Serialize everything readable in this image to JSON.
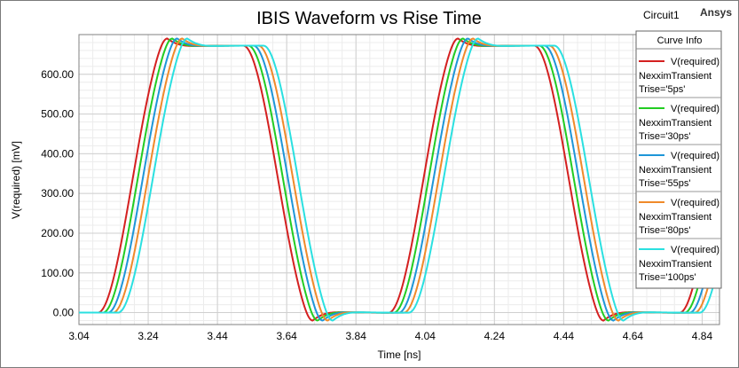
{
  "chart_data": {
    "type": "line",
    "title": "IBIS Waveform vs Rise Time",
    "circuit_label": "Circuit1",
    "brand": "Ansys",
    "xlabel": "Time [ns]",
    "ylabel": "V(required) [mV]",
    "xlim": [
      3.04,
      4.89
    ],
    "ylim": [
      -30,
      700
    ],
    "x_ticks": [
      "3.04",
      "3.24",
      "3.44",
      "3.64",
      "3.84",
      "4.04",
      "4.24",
      "4.44",
      "4.64",
      "4.84"
    ],
    "y_ticks": [
      "0.00",
      "100.00",
      "200.00",
      "300.00",
      "400.00",
      "500.00",
      "600.00"
    ],
    "grid": true,
    "legend": {
      "title": "Curve Info",
      "position": "right"
    },
    "period_ns": 0.84,
    "first_rise_start_ns": 3.095,
    "edge_delay_step_ns": 0.0145,
    "series": [
      {
        "name": "V(required)",
        "source": "NexximTransient",
        "param": "Trise='5ps'",
        "color": "#d42020",
        "rise_ns": 0.2,
        "fall_ns": 0.2,
        "high_mv": 672,
        "overshoot_mv": 690,
        "undershoot_mv": -20
      },
      {
        "name": "V(required)",
        "source": "NexximTransient",
        "param": "Trise='30ps'",
        "color": "#22cc22",
        "rise_ns": 0.2,
        "fall_ns": 0.2,
        "high_mv": 672,
        "overshoot_mv": 690,
        "undershoot_mv": -20
      },
      {
        "name": "V(required)",
        "source": "NexximTransient",
        "param": "Trise='55ps'",
        "color": "#1e96d8",
        "rise_ns": 0.2,
        "fall_ns": 0.2,
        "high_mv": 672,
        "overshoot_mv": 690,
        "undershoot_mv": -20
      },
      {
        "name": "V(required)",
        "source": "NexximTransient",
        "param": "Trise='80ps'",
        "color": "#f08a2a",
        "rise_ns": 0.2,
        "fall_ns": 0.2,
        "high_mv": 672,
        "overshoot_mv": 690,
        "undershoot_mv": -20
      },
      {
        "name": "V(required)",
        "source": "NexximTransient",
        "param": "Trise='100ps'",
        "color": "#2ae0e0",
        "rise_ns": 0.2,
        "fall_ns": 0.2,
        "high_mv": 672,
        "overshoot_mv": 690,
        "undershoot_mv": -20
      }
    ]
  }
}
